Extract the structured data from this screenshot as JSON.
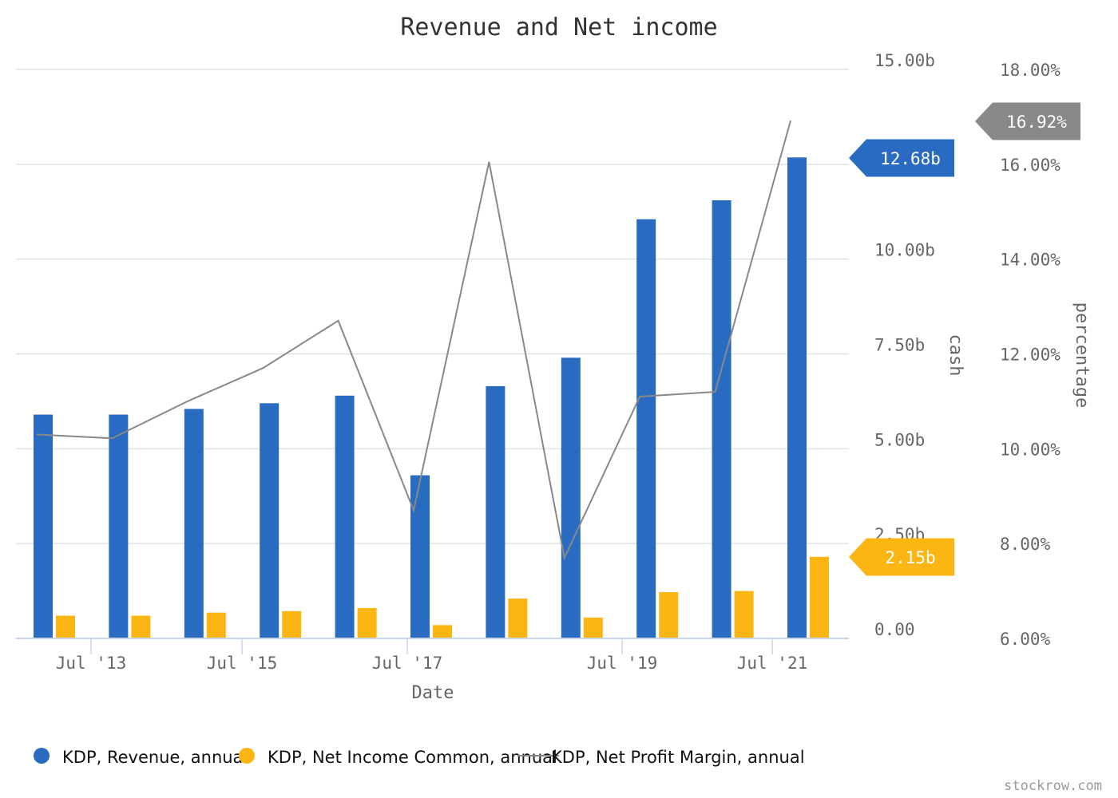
{
  "chart_data": {
    "type": "bar",
    "title": "Revenue and Net income",
    "xlabel": "Date",
    "ylabel_left": "cash",
    "ylabel_right": "percentage",
    "x": [
      "2012",
      "2013",
      "2014",
      "2015",
      "2016",
      "2017",
      "2018",
      "2019",
      "2020",
      "2021",
      "2022"
    ],
    "x_tick_labels": [
      "Jul '13",
      "Jul '15",
      "Jul '17",
      "Jul '19",
      "Jul '21"
    ],
    "y_left_ticks": [
      "0.00",
      "2.50b",
      "5.00b",
      "7.50b",
      "10.00b",
      "15.00b"
    ],
    "y_right_ticks": [
      "6.00%",
      "8.00%",
      "10.00%",
      "12.00%",
      "14.00%",
      "16.00%",
      "18.00%"
    ],
    "ylim_left": [
      0,
      15
    ],
    "ylim_right": [
      6,
      18
    ],
    "series": [
      {
        "name": "KDP, Revenue, annual",
        "axis": "left",
        "kind": "bar",
        "unit": "b",
        "color": "#2a6bc2",
        "values": [
          5.9,
          5.9,
          6.05,
          6.2,
          6.4,
          4.3,
          6.65,
          7.4,
          11.05,
          11.55,
          12.68
        ]
      },
      {
        "name": "KDP, Net Income Common, annual",
        "axis": "left",
        "kind": "bar",
        "unit": "b",
        "color": "#fbb614",
        "values": [
          0.6,
          0.6,
          0.68,
          0.72,
          0.8,
          0.35,
          1.05,
          0.55,
          1.22,
          1.25,
          2.15
        ]
      },
      {
        "name": "KDP, Net Profit Margin, annual",
        "axis": "right",
        "kind": "line",
        "unit": "%",
        "color": "#888888",
        "values": [
          10.3,
          10.22,
          11.0,
          11.7,
          12.7,
          8.7,
          16.05,
          7.7,
          11.1,
          11.2,
          16.92
        ]
      }
    ],
    "last_value_labels": {
      "revenue": "12.68b",
      "net_income": "2.15b",
      "margin": "16.92%"
    },
    "legend_position": "bottom-left",
    "grid": true,
    "watermark": "stockrow.com"
  },
  "colors": {
    "revenue": "#2a6bc2",
    "net_income": "#fbb614",
    "margin": "#888888"
  }
}
